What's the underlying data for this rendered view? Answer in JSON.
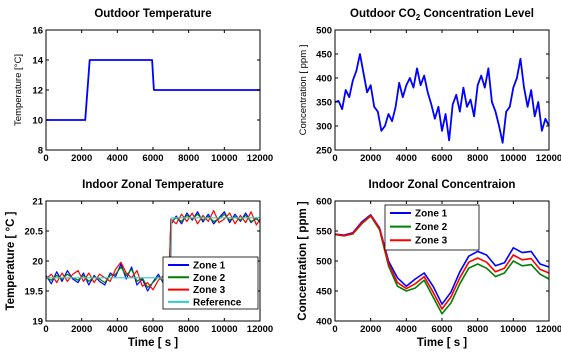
{
  "chart_data": [
    {
      "type": "line",
      "title": "Outdoor Temperature",
      "xlabel": "",
      "ylabel": "Temperature [°C]",
      "xlim": [
        0,
        12000
      ],
      "ylim": [
        8,
        16
      ],
      "xticks": [
        0,
        2000,
        4000,
        6000,
        8000,
        10000,
        12000
      ],
      "yticks": [
        8,
        10,
        12,
        14,
        16
      ],
      "legend": "none",
      "series": [
        {
          "color": "#0000ff",
          "x": [
            0,
            2200,
            2450,
            5950,
            6050,
            12000
          ],
          "y": [
            10,
            10,
            14,
            14,
            12,
            12
          ]
        }
      ]
    },
    {
      "type": "line",
      "title": "Outdoor CO",
      "title_sub": "2",
      "title_tail": " Concentration Level",
      "xlabel": "",
      "ylabel": "Concentration [ ppm ]",
      "xlim": [
        0,
        12000
      ],
      "ylim": [
        250,
        500
      ],
      "xticks": [
        0,
        2000,
        4000,
        6000,
        8000,
        10000,
        12000
      ],
      "yticks": [
        250,
        300,
        350,
        400,
        450,
        500
      ],
      "legend": "none",
      "series": [
        {
          "color": "#0000ff",
          "x": [
            0,
            200,
            400,
            600,
            800,
            1000,
            1200,
            1400,
            1600,
            1800,
            2000,
            2200,
            2400,
            2600,
            2800,
            3000,
            3200,
            3400,
            3600,
            3800,
            4000,
            4200,
            4400,
            4600,
            4800,
            5000,
            5200,
            5400,
            5600,
            5800,
            6000,
            6200,
            6400,
            6600,
            6800,
            7000,
            7200,
            7400,
            7600,
            7800,
            8000,
            8200,
            8400,
            8600,
            8800,
            9000,
            9200,
            9400,
            9600,
            9800,
            10000,
            10200,
            10400,
            10600,
            10800,
            11000,
            11200,
            11400,
            11600,
            11800,
            12000
          ],
          "y": [
            350,
            352,
            335,
            375,
            360,
            395,
            415,
            450,
            410,
            370,
            385,
            340,
            330,
            290,
            300,
            325,
            310,
            340,
            390,
            360,
            385,
            400,
            380,
            420,
            385,
            405,
            370,
            345,
            315,
            340,
            290,
            325,
            270,
            345,
            365,
            330,
            380,
            340,
            355,
            320,
            385,
            405,
            380,
            420,
            350,
            330,
            300,
            265,
            330,
            340,
            380,
            400,
            440,
            380,
            340,
            375,
            320,
            350,
            290,
            315,
            300
          ]
        }
      ]
    },
    {
      "type": "line",
      "title": "Indoor Zonal Temperature",
      "xlabel": "Time [ s ]",
      "ylabel": "Temperature [ °C ]",
      "xlim": [
        0,
        12000
      ],
      "ylim": [
        19,
        21
      ],
      "xticks": [
        0,
        2000,
        4000,
        6000,
        8000,
        10000,
        12000
      ],
      "yticks": [
        19,
        19.5,
        20,
        20.5,
        21
      ],
      "legend": "lower-right",
      "series": [
        {
          "name": "Zone 1",
          "color": "#0000ff",
          "x": [
            0,
            300,
            600,
            900,
            1200,
            1500,
            1800,
            2100,
            2400,
            2700,
            3000,
            3300,
            3600,
            3900,
            4200,
            4500,
            4800,
            5100,
            5400,
            5700,
            6000,
            6300,
            6600,
            6900,
            7000,
            7300,
            7600,
            7900,
            8200,
            8500,
            8800,
            9100,
            9400,
            9700,
            10000,
            10300,
            10600,
            10900,
            11200,
            11500,
            11800,
            12000
          ],
          "y": [
            19.76,
            19.62,
            19.82,
            19.66,
            19.84,
            19.7,
            19.64,
            19.8,
            19.6,
            19.76,
            19.66,
            19.6,
            19.8,
            19.74,
            19.95,
            19.7,
            19.9,
            19.6,
            19.7,
            19.5,
            19.65,
            19.78,
            19.62,
            19.72,
            20.6,
            20.75,
            20.62,
            20.8,
            20.68,
            20.82,
            20.65,
            20.78,
            20.62,
            20.72,
            20.82,
            20.64,
            20.78,
            20.66,
            20.8,
            20.64,
            20.72,
            20.64
          ]
        },
        {
          "name": "Zone 2",
          "color": "#008000",
          "x": [
            0,
            300,
            600,
            900,
            1200,
            1500,
            1800,
            2100,
            2400,
            2700,
            3000,
            3300,
            3600,
            3900,
            4200,
            4500,
            4800,
            5100,
            5400,
            5700,
            6000,
            6300,
            6600,
            6900,
            7000,
            7300,
            7600,
            7900,
            8200,
            8500,
            8800,
            9100,
            9400,
            9700,
            10000,
            10300,
            10600,
            10900,
            11200,
            11500,
            11800,
            12000
          ],
          "y": [
            19.72,
            19.68,
            19.76,
            19.7,
            19.78,
            19.72,
            19.68,
            19.76,
            19.66,
            19.74,
            19.7,
            19.64,
            19.76,
            19.78,
            19.9,
            19.76,
            19.86,
            19.66,
            19.72,
            19.56,
            19.64,
            19.74,
            19.66,
            19.7,
            20.65,
            20.72,
            20.66,
            20.76,
            20.7,
            20.78,
            20.68,
            20.74,
            20.66,
            20.7,
            20.78,
            20.68,
            20.74,
            20.68,
            20.76,
            20.66,
            20.7,
            20.66
          ]
        },
        {
          "name": "Zone 3",
          "color": "#ff0000",
          "x": [
            0,
            300,
            600,
            900,
            1200,
            1500,
            1800,
            2100,
            2400,
            2700,
            3000,
            3300,
            3600,
            3900,
            4200,
            4500,
            4800,
            5100,
            5400,
            5700,
            6000,
            6300,
            6600,
            6900,
            7000,
            7300,
            7600,
            7900,
            8200,
            8500,
            8800,
            9100,
            9400,
            9700,
            10000,
            10300,
            10600,
            10900,
            11200,
            11500,
            11800,
            12000
          ],
          "y": [
            19.7,
            19.78,
            19.64,
            19.8,
            19.66,
            19.78,
            19.84,
            19.66,
            19.8,
            19.64,
            19.78,
            19.72,
            19.66,
            19.86,
            19.98,
            19.8,
            19.72,
            19.84,
            19.58,
            19.64,
            19.52,
            19.68,
            19.76,
            19.64,
            20.7,
            20.62,
            20.78,
            20.66,
            20.8,
            20.62,
            20.76,
            20.66,
            20.84,
            20.64,
            20.7,
            20.8,
            20.62,
            20.76,
            20.64,
            20.82,
            20.6,
            20.7
          ]
        },
        {
          "name": "Reference",
          "color": "#33cccc",
          "x": [
            0,
            7000,
            7050,
            12000
          ],
          "y": [
            19.72,
            19.72,
            20.72,
            20.72
          ]
        }
      ]
    },
    {
      "type": "line",
      "title": "Indoor Zonal Concentraion",
      "xlabel": "Time [ s ]",
      "ylabel": "Concentration [ ppm ]",
      "xlim": [
        0,
        12000
      ],
      "ylim": [
        400,
        600
      ],
      "xticks": [
        0,
        2000,
        4000,
        6000,
        8000,
        10000,
        12000
      ],
      "yticks": [
        400,
        450,
        500,
        550,
        600
      ],
      "legend": "top-right",
      "series": [
        {
          "name": "Zone 1",
          "color": "#0000ff",
          "x": [
            0,
            500,
            1000,
            1500,
            2000,
            2500,
            3000,
            3500,
            4000,
            4500,
            5000,
            5500,
            6000,
            6500,
            7000,
            7500,
            8000,
            8500,
            9000,
            9500,
            10000,
            10500,
            11000,
            11500,
            12000
          ],
          "y": [
            545,
            543,
            547,
            565,
            577,
            555,
            500,
            472,
            458,
            470,
            480,
            458,
            428,
            448,
            482,
            508,
            516,
            510,
            492,
            497,
            522,
            514,
            516,
            495,
            490
          ]
        },
        {
          "name": "Zone 2",
          "color": "#008000",
          "x": [
            0,
            500,
            1000,
            1500,
            2000,
            2500,
            3000,
            3500,
            4000,
            4500,
            5000,
            5500,
            6000,
            6500,
            7000,
            7500,
            8000,
            8500,
            9000,
            9500,
            10000,
            10500,
            11000,
            11500,
            12000
          ],
          "y": [
            544,
            542,
            545,
            562,
            575,
            552,
            492,
            458,
            450,
            455,
            468,
            440,
            412,
            430,
            462,
            488,
            495,
            488,
            474,
            480,
            500,
            492,
            494,
            478,
            470
          ]
        },
        {
          "name": "Zone 3",
          "color": "#ff0000",
          "x": [
            0,
            500,
            1000,
            1500,
            2000,
            2500,
            3000,
            3500,
            4000,
            4500,
            5000,
            5500,
            6000,
            6500,
            7000,
            7500,
            8000,
            8500,
            9000,
            9500,
            10000,
            10500,
            11000,
            11500,
            12000
          ],
          "y": [
            545,
            542,
            546,
            563,
            576,
            554,
            496,
            464,
            454,
            462,
            474,
            448,
            420,
            440,
            472,
            498,
            505,
            498,
            482,
            488,
            510,
            502,
            504,
            486,
            480
          ]
        }
      ]
    }
  ]
}
